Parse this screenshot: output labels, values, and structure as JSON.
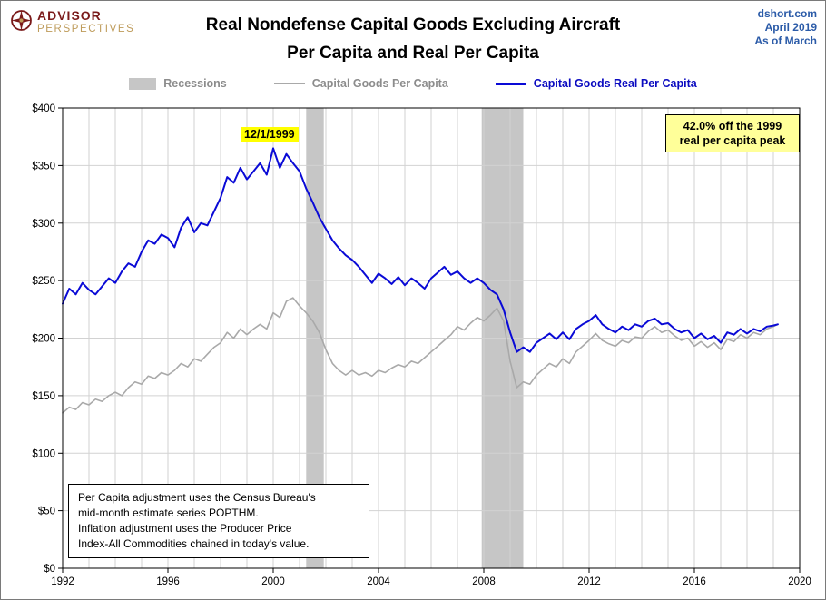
{
  "header": {
    "logo_line1": "ADVISOR",
    "logo_line2": "PERSPECTIVES",
    "title_line1": "Real Nondefense Capital Goods Excluding Aircraft",
    "title_line2": "Per Capita and Real Per Capita",
    "source_site": "dshort.com",
    "source_date": "April 2019",
    "source_asof": "As of March"
  },
  "legend": {
    "recessions_label": "Recessions",
    "nominal_label": "Capital Goods Per Capita",
    "real_label": "Capital Goods Real Per Capita"
  },
  "annotations": {
    "peak_date": "12/1/1999",
    "callout_line1": "42.0%  off the 1999",
    "callout_line2": "real per capita peak",
    "note_lines": [
      "Per Capita adjustment uses the Census Bureau's",
      "mid-month estimate series POPTHM.",
      "Inflation adjustment uses the Producer Price",
      "Index-All Commodities chained in today's value."
    ]
  },
  "colors": {
    "real_line": "#0A0AD6",
    "nominal_line": "#A9A9A9",
    "recession_band": "#C6C6C6",
    "grid": "#D2D2D2",
    "source_text": "#2B5BA8",
    "logo_red": "#7A1A1A",
    "logo_gold": "#BE9B5A",
    "highlight_yellow": "#FFFF00",
    "callout_yellow": "#FFFF99"
  },
  "chart_data": {
    "type": "line",
    "title": "Real Nondefense Capital Goods Excluding Aircraft Per Capita and Real Per Capita",
    "xlabel": "",
    "ylabel": "",
    "xlim": [
      1992,
      2020
    ],
    "ylim": [
      0,
      400
    ],
    "x_grid_step": 1,
    "y_grid_step": 50,
    "grid": true,
    "legend_position": "top",
    "x_ticks": [
      1992,
      1996,
      2000,
      2004,
      2008,
      2012,
      2016,
      2020
    ],
    "y_ticks": [
      {
        "value": 0,
        "label": "$0"
      },
      {
        "value": 50,
        "label": "$50"
      },
      {
        "value": 100,
        "label": "$100"
      },
      {
        "value": 150,
        "label": "$150"
      },
      {
        "value": 200,
        "label": "$200"
      },
      {
        "value": 250,
        "label": "$250"
      },
      {
        "value": 300,
        "label": "$300"
      },
      {
        "value": 350,
        "label": "$350"
      },
      {
        "value": 400,
        "label": "$400"
      }
    ],
    "recessions": [
      [
        2001.25,
        2001.92
      ],
      [
        2007.92,
        2009.5
      ]
    ],
    "colors": {
      "recession_band": "#C6C6C6",
      "grid": "#D2D2D2",
      "frame": "#000000"
    },
    "x": [
      1992,
      1992.25,
      1992.5,
      1992.75,
      1993,
      1993.25,
      1993.5,
      1993.75,
      1994,
      1994.25,
      1994.5,
      1994.75,
      1995,
      1995.25,
      1995.5,
      1995.75,
      1996,
      1996.25,
      1996.5,
      1996.75,
      1997,
      1997.25,
      1997.5,
      1997.75,
      1998,
      1998.25,
      1998.5,
      1998.75,
      1999,
      1999.25,
      1999.5,
      1999.75,
      2000,
      2000.25,
      2000.5,
      2000.75,
      2001,
      2001.25,
      2001.5,
      2001.75,
      2002,
      2002.25,
      2002.5,
      2002.75,
      2003,
      2003.25,
      2003.5,
      2003.75,
      2004,
      2004.25,
      2004.5,
      2004.75,
      2005,
      2005.25,
      2005.5,
      2005.75,
      2006,
      2006.25,
      2006.5,
      2006.75,
      2007,
      2007.25,
      2007.5,
      2007.75,
      2008,
      2008.25,
      2008.5,
      2008.75,
      2009,
      2009.25,
      2009.5,
      2009.75,
      2010,
      2010.25,
      2010.5,
      2010.75,
      2011,
      2011.25,
      2011.5,
      2011.75,
      2012,
      2012.25,
      2012.5,
      2012.75,
      2013,
      2013.25,
      2013.5,
      2013.75,
      2014,
      2014.25,
      2014.5,
      2014.75,
      2015,
      2015.25,
      2015.5,
      2015.75,
      2016,
      2016.25,
      2016.5,
      2016.75,
      2017,
      2017.25,
      2017.5,
      2017.75,
      2018,
      2018.25,
      2018.5,
      2018.75,
      2019,
      2019.17
    ],
    "series": [
      {
        "name": "Capital Goods Per Capita",
        "data_name": "capital-goods-per-capita-line",
        "color": "#A9A9A9",
        "width": 1.6,
        "values": [
          135,
          140,
          138,
          144,
          142,
          147,
          145,
          150,
          153,
          150,
          157,
          162,
          160,
          167,
          165,
          170,
          168,
          172,
          178,
          175,
          182,
          180,
          186,
          192,
          196,
          205,
          200,
          208,
          203,
          208,
          212,
          208,
          222,
          218,
          232,
          235,
          228,
          222,
          215,
          205,
          190,
          178,
          172,
          168,
          172,
          168,
          170,
          167,
          172,
          170,
          174,
          177,
          175,
          180,
          178,
          183,
          188,
          193,
          198,
          203,
          210,
          207,
          213,
          218,
          215,
          220,
          226,
          215,
          180,
          157,
          162,
          160,
          168,
          173,
          178,
          175,
          182,
          178,
          188,
          193,
          198,
          204,
          198,
          195,
          193,
          198,
          196,
          201,
          200,
          206,
          210,
          205,
          207,
          202,
          198,
          200,
          193,
          197,
          192,
          196,
          190,
          199,
          197,
          203,
          200,
          205,
          203,
          208,
          210,
          212
        ]
      },
      {
        "name": "Capital Goods Real Per Capita",
        "data_name": "capital-goods-real-per-capita-line",
        "color": "#0A0AD6",
        "width": 2,
        "values": [
          230,
          243,
          238,
          248,
          242,
          238,
          245,
          252,
          248,
          258,
          265,
          262,
          275,
          285,
          282,
          290,
          287,
          279,
          296,
          305,
          292,
          300,
          298,
          310,
          322,
          340,
          335,
          348,
          338,
          345,
          352,
          342,
          365,
          348,
          360,
          352,
          345,
          330,
          318,
          305,
          295,
          285,
          278,
          272,
          268,
          262,
          255,
          248,
          256,
          252,
          247,
          253,
          246,
          252,
          248,
          243,
          252,
          257,
          262,
          255,
          258,
          252,
          248,
          252,
          248,
          242,
          238,
          225,
          205,
          188,
          192,
          188,
          196,
          200,
          204,
          199,
          205,
          199,
          208,
          212,
          215,
          220,
          212,
          208,
          205,
          210,
          207,
          212,
          210,
          215,
          217,
          212,
          213,
          208,
          205,
          207,
          200,
          204,
          199,
          202,
          196,
          205,
          203,
          208,
          204,
          208,
          206,
          210,
          211,
          212
        ]
      }
    ]
  }
}
